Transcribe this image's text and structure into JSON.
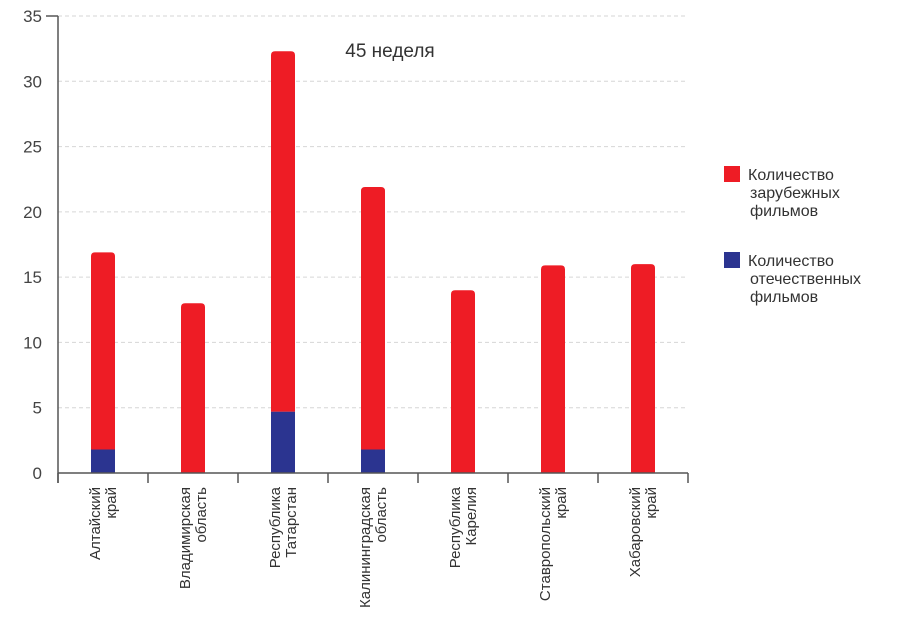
{
  "chart_data": {
    "type": "bar",
    "stacked": true,
    "title": "45 неделя",
    "xlabel": "",
    "ylabel": "",
    "ylim": [
      0,
      35
    ],
    "yticks": [
      0,
      5,
      10,
      15,
      20,
      25,
      30,
      35
    ],
    "grid": true,
    "legend_position": "right",
    "categories": [
      [
        "Алтайский",
        "край"
      ],
      [
        "Владимирская",
        "область"
      ],
      [
        "Республика",
        "Татарстан"
      ],
      [
        "Калининградская",
        "область"
      ],
      [
        "Республика",
        "Карелия"
      ],
      [
        "Ставропольский",
        "край"
      ],
      [
        "Хабаровский",
        "край"
      ]
    ],
    "series": [
      {
        "name": [
          "Количество",
          "отечественных",
          "фильмов"
        ],
        "color": "#2b3490",
        "values": [
          1.8,
          0,
          4.7,
          1.8,
          0,
          0,
          0
        ]
      },
      {
        "name": [
          "Количество",
          "зарубежных",
          "фильмов"
        ],
        "color": "#ee1c25",
        "values": [
          15.1,
          13.0,
          27.6,
          20.1,
          14.0,
          15.9,
          16.0
        ]
      }
    ],
    "legend_order": [
      1,
      0
    ]
  }
}
